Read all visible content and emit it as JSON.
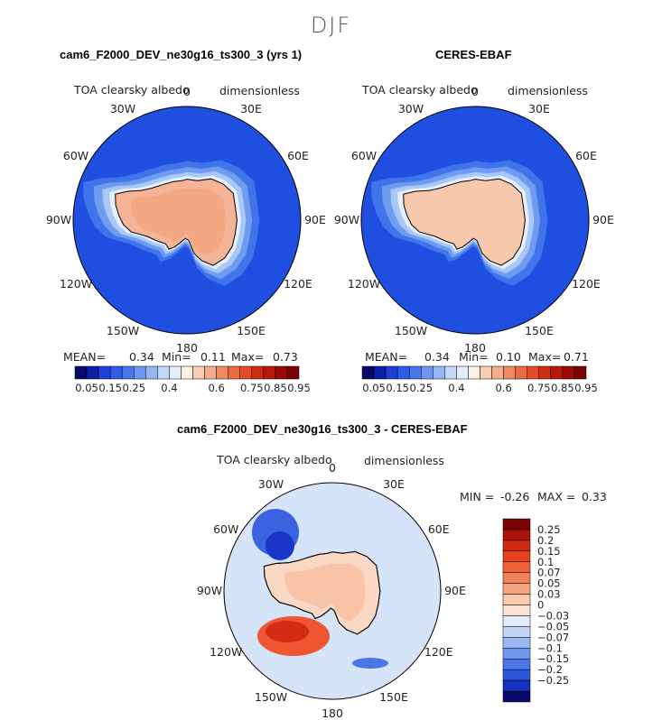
{
  "figure_title": "DJF",
  "panels": [
    {
      "title": "cam6_F2000_DEV_ne30g16_ts300_3 (yrs 1)",
      "variable": "TOA clearsky albedo",
      "units": "dimensionless",
      "stats": {
        "mean_label": "MEAN=",
        "mean": "0.34",
        "min_label": "Min=",
        "min": "0.11",
        "max_label": "Max=",
        "max": "0.73"
      }
    },
    {
      "title": "CERES-EBAF",
      "variable": "TOA clearsky albedo",
      "units": "dimensionless",
      "stats": {
        "mean_label": "MEAN=",
        "mean": "0.34",
        "min_label": "Min=",
        "min": "0.10",
        "max_label": "Max=",
        "max": "0.71"
      }
    },
    {
      "title": "cam6_F2000_DEV_ne30g16_ts300_3 - CERES-EBAF",
      "variable": "TOA clearsky albedo",
      "units": "dimensionless",
      "stats": {
        "min_label": "MIN =",
        "min": "-0.26",
        "max_label": "MAX =",
        "max": "0.33"
      }
    }
  ],
  "longitude_labels": [
    "0",
    "30E",
    "60E",
    "90E",
    "120E",
    "150E",
    "180",
    "150W",
    "120W",
    "90W",
    "60W",
    "30W"
  ],
  "chart_data": [
    {
      "type": "heatmap",
      "projection": "south-polar-stereographic",
      "title": "cam6_F2000_DEV_ne30g16_ts300_3 (yrs 1)",
      "variable": "TOA clearsky albedo",
      "units": "dimensionless",
      "mean": 0.34,
      "min": 0.11,
      "max": 0.73,
      "colorbar": {
        "levels": [
          0.05,
          0.1,
          0.15,
          0.2,
          0.25,
          0.3,
          0.35,
          0.4,
          0.45,
          0.5,
          0.55,
          0.6,
          0.65,
          0.7,
          0.75,
          0.8,
          0.85,
          0.9,
          0.95
        ],
        "tick_labels": [
          "0.05",
          "0.15",
          "0.25",
          "0.4",
          "0.6",
          "0.75",
          "0.85",
          "0.95"
        ],
        "colors": [
          "#08086b",
          "#0b1fa6",
          "#1f3fd9",
          "#2d5ee8",
          "#4a78ec",
          "#6f97f0",
          "#97b6f5",
          "#c4d8f9",
          "#e3edfb",
          "#fdf0e6",
          "#f8cdb4",
          "#f4ae8b",
          "#f08a61",
          "#ec6a3f",
          "#e34c24",
          "#d02e14",
          "#b8180c",
          "#9a0a06",
          "#7a0303"
        ]
      }
    },
    {
      "type": "heatmap",
      "projection": "south-polar-stereographic",
      "title": "CERES-EBAF",
      "variable": "TOA clearsky albedo",
      "units": "dimensionless",
      "mean": 0.34,
      "min": 0.1,
      "max": 0.71,
      "colorbar": {
        "levels": [
          0.05,
          0.1,
          0.15,
          0.2,
          0.25,
          0.3,
          0.35,
          0.4,
          0.45,
          0.5,
          0.55,
          0.6,
          0.65,
          0.7,
          0.75,
          0.8,
          0.85,
          0.9,
          0.95
        ],
        "tick_labels": [
          "0.05",
          "0.15",
          "0.25",
          "0.4",
          "0.6",
          "0.75",
          "0.85",
          "0.95"
        ],
        "colors": [
          "#08086b",
          "#0b1fa6",
          "#1f3fd9",
          "#2d5ee8",
          "#4a78ec",
          "#6f97f0",
          "#97b6f5",
          "#c4d8f9",
          "#e3edfb",
          "#fdf0e6",
          "#f8cdb4",
          "#f4ae8b",
          "#f08a61",
          "#ec6a3f",
          "#e34c24",
          "#d02e14",
          "#b8180c",
          "#9a0a06",
          "#7a0303"
        ]
      }
    },
    {
      "type": "heatmap",
      "projection": "south-polar-stereographic",
      "title": "cam6_F2000_DEV_ne30g16_ts300_3 - CERES-EBAF",
      "variable": "TOA clearsky albedo",
      "units": "dimensionless",
      "min": -0.26,
      "max": 0.33,
      "colorbar": {
        "orientation": "vertical",
        "tick_labels": [
          "0.25",
          "0.2",
          "0.15",
          "0.1",
          "0.07",
          "0.05",
          "0.03",
          "0",
          "−0.03",
          "−0.05",
          "−0.07",
          "−0.1",
          "−0.15",
          "−0.2",
          "−0.25"
        ],
        "colors": [
          "#7a0303",
          "#a81208",
          "#d0290f",
          "#e8421d",
          "#f06236",
          "#f3825a",
          "#f6a580",
          "#f9c9ac",
          "#fbe3d3",
          "#e4ecf9",
          "#c4d6f7",
          "#9ab9f3",
          "#7098ee",
          "#4a76e8",
          "#2a55dd",
          "#1433c0",
          "#08086b"
        ]
      }
    }
  ],
  "colors": {
    "ocean_low": "#1f4fe0",
    "ice_edge": "#e6f0ff",
    "antarctica_model": "#f6b496",
    "antarctica_obs": "#f8c8ad",
    "diff_background": "#d6e4fa"
  }
}
